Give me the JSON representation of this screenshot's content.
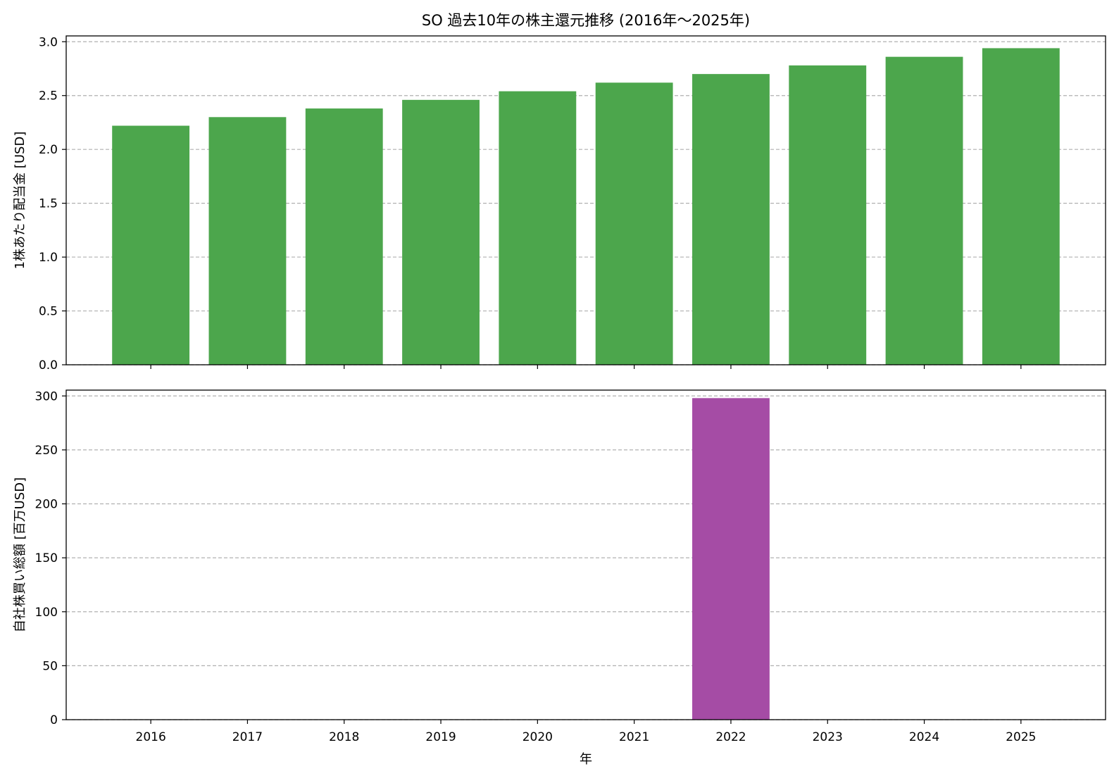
{
  "chart_data": {
    "type": "bar",
    "title": "SO 過去10年の株主還元推移 (2016年～2025年)",
    "xlabel": "年",
    "categories": [
      "2016",
      "2017",
      "2018",
      "2019",
      "2020",
      "2021",
      "2022",
      "2023",
      "2024",
      "2025"
    ],
    "grid": "y-dashed",
    "panels": [
      {
        "ylabel": "1株あたり配当金 [USD]",
        "color": "#4ca64c",
        "values": [
          2.22,
          2.3,
          2.38,
          2.46,
          2.54,
          2.62,
          2.7,
          2.78,
          2.86,
          2.94
        ],
        "ylim": [
          0,
          3.0
        ],
        "yticks": [
          "0.0",
          "0.5",
          "1.0",
          "1.5",
          "2.0",
          "2.5",
          "3.0"
        ],
        "ytick_values": [
          0,
          0.5,
          1.0,
          1.5,
          2.0,
          2.5,
          3.0
        ]
      },
      {
        "ylabel": "自社株買い総額 [百万USD]",
        "color": "#a54ca5",
        "values": [
          0,
          0,
          0,
          0,
          0,
          0,
          298,
          0,
          0,
          0
        ],
        "ylim": [
          0,
          300
        ],
        "yticks": [
          "0",
          "50",
          "100",
          "150",
          "200",
          "250",
          "300"
        ],
        "ytick_values": [
          0,
          50,
          100,
          150,
          200,
          250,
          300
        ]
      }
    ]
  }
}
